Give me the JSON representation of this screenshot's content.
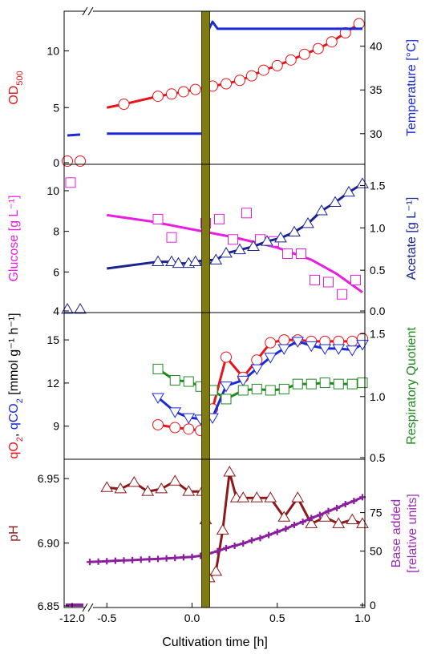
{
  "xlabel": "Cultivation time [h]",
  "x_ticks": [
    "-12.0",
    "-0.5",
    "0.0",
    "0.5",
    "1.0"
  ],
  "shift_marker": {
    "x": 0.08,
    "color": "#7f7a11"
  },
  "chart_data": [
    {
      "type": "line",
      "panel": "top",
      "left_label": {
        "main": "OD",
        "sub": "500",
        "color": "#e8141b"
      },
      "right_label": {
        "text": "Temperature [°C]",
        "color": "#1a2ad6"
      },
      "left_ticks": [
        "0",
        "5",
        "10"
      ],
      "right_ticks": [
        "30",
        "35",
        "40"
      ],
      "ylim_left": [
        0,
        13.5
      ],
      "ylim_right": [
        26.5,
        44
      ],
      "series": [
        {
          "axis": "left",
          "color": "#e8141b",
          "marker": "circle",
          "pre": [
            0.0,
            0.0
          ],
          "x": [
            -0.4,
            -0.2,
            -0.12,
            -0.05,
            0.02,
            0.12,
            0.2,
            0.28,
            0.35,
            0.42,
            0.5,
            0.58,
            0.66,
            0.74,
            0.82,
            0.9,
            0.98
          ],
          "y": [
            5.3,
            6.0,
            6.2,
            6.4,
            6.6,
            6.9,
            7.1,
            7.4,
            7.8,
            8.3,
            8.7,
            9.2,
            9.7,
            10.2,
            10.8,
            11.6,
            12.4
          ],
          "line_start": -0.5,
          "line_start_y": 5.0
        },
        {
          "axis": "right",
          "color": "#1a2ad6",
          "marker": "none",
          "x": [
            -0.5,
            0.06,
            0.07,
            0.085,
            0.1,
            0.12,
            0.15,
            1.0
          ],
          "y": [
            30.0,
            30.0,
            30.5,
            38.0,
            42.0,
            42.8,
            42.0,
            42.0
          ],
          "pre": [
            29.8,
            29.9
          ]
        }
      ]
    },
    {
      "type": "line",
      "panel": "glucose-acetate",
      "left_label": {
        "text": "Glucose [g L⁻¹]",
        "color": "#e81ee0"
      },
      "right_label": {
        "text": "Acetate [g L⁻¹]",
        "color": "#1a2490"
      },
      "left_ticks": [
        "4",
        "6",
        "8",
        "10"
      ],
      "right_ticks": [
        "0.0",
        "0.5",
        "1.0",
        "1.5"
      ],
      "ylim_left": [
        4,
        11.3
      ],
      "ylim_right": [
        0,
        1.75
      ],
      "series": [
        {
          "axis": "left",
          "color": "#e81ee0",
          "marker": "square",
          "line": "fit",
          "pre": [
            10.4
          ],
          "x": [
            -0.2,
            -0.12,
            0.08,
            0.16,
            0.24,
            0.32,
            0.4,
            0.48,
            0.56,
            0.64,
            0.72,
            0.8,
            0.88,
            0.96
          ],
          "y": [
            8.6,
            7.7,
            8.4,
            8.6,
            7.6,
            8.9,
            7.6,
            7.5,
            6.9,
            6.9,
            5.6,
            5.5,
            4.9,
            5.6
          ],
          "fit_x": [
            -0.5,
            -0.25,
            0.0,
            0.25,
            0.5,
            0.7,
            0.85,
            1.0
          ],
          "fit_y": [
            8.8,
            8.5,
            8.1,
            7.7,
            7.2,
            6.6,
            5.9,
            5.0
          ]
        },
        {
          "axis": "right",
          "color": "#1a2490",
          "marker": "triangle-up",
          "line": "data",
          "pre": [
            0.02,
            0.02
          ],
          "x": [
            -0.2,
            -0.12,
            -0.08,
            -0.02,
            0.02,
            0.08,
            0.14,
            0.2,
            0.28,
            0.36,
            0.44,
            0.52,
            0.6,
            0.68,
            0.76,
            0.84,
            0.92,
            1.0
          ],
          "y": [
            0.6,
            0.6,
            0.58,
            0.58,
            0.6,
            0.62,
            0.62,
            0.7,
            0.74,
            0.78,
            0.84,
            0.88,
            0.95,
            1.05,
            1.2,
            1.3,
            1.42,
            1.52
          ],
          "line_start": -0.5,
          "line_start_y": 0.52
        }
      ]
    },
    {
      "type": "line",
      "panel": "rates",
      "left_label": {
        "parts": [
          {
            "text": "qO",
            "color": "#e8141b"
          },
          {
            "text": "2",
            "sub": true,
            "color": "#e8141b"
          },
          {
            "text": ", ",
            "color": "#000"
          },
          {
            "text": "qCO",
            "color": "#1a2ad6"
          },
          {
            "text": "2",
            "sub": true,
            "color": "#1a2ad6"
          },
          {
            "text": " [mmol g⁻¹ h⁻¹]",
            "color": "#000"
          }
        ]
      },
      "right_label": {
        "text": "Respiratory Quotient",
        "color": "#1f8a1f"
      },
      "left_ticks": [
        "9",
        "12",
        "15"
      ],
      "right_ticks": [
        "0.5",
        "1.0",
        "1.5"
      ],
      "ylim_left": [
        6.7,
        16.9
      ],
      "ylim_right": [
        0.5,
        1.67
      ],
      "series": [
        {
          "axis": "left",
          "color": "#e8141b",
          "marker": "circle",
          "x": [
            -0.2,
            -0.1,
            -0.02,
            0.05,
            0.12,
            0.2,
            0.3,
            0.38,
            0.46,
            0.54,
            0.62,
            0.7,
            0.78,
            0.86,
            0.94,
            1.0
          ],
          "y": [
            9.1,
            8.9,
            8.8,
            8.7,
            10.2,
            13.8,
            12.4,
            13.6,
            14.8,
            15.0,
            15.0,
            14.9,
            14.9,
            14.9,
            14.9,
            15.1
          ]
        },
        {
          "axis": "left",
          "color": "#1a2ad6",
          "marker": "triangle-down",
          "x": [
            -0.2,
            -0.1,
            -0.02,
            0.05,
            0.12,
            0.2,
            0.3,
            0.38,
            0.46,
            0.54,
            0.62,
            0.7,
            0.78,
            0.86,
            0.94,
            1.0
          ],
          "y": [
            11.0,
            10.0,
            9.6,
            9.5,
            9.6,
            11.8,
            12.2,
            13.0,
            13.8,
            14.4,
            14.9,
            14.6,
            14.4,
            14.4,
            14.3,
            14.7
          ]
        },
        {
          "axis": "right",
          "color": "#1f8a1f",
          "marker": "square",
          "x": [
            -0.2,
            -0.1,
            -0.02,
            0.05,
            0.12,
            0.2,
            0.3,
            0.38,
            0.46,
            0.54,
            0.62,
            0.7,
            0.78,
            0.86,
            0.94,
            1.0
          ],
          "y": [
            1.22,
            1.13,
            1.12,
            1.08,
            1.05,
            0.98,
            1.05,
            1.06,
            1.05,
            1.06,
            1.1,
            1.1,
            1.11,
            1.1,
            1.1,
            1.11
          ]
        }
      ]
    },
    {
      "type": "line",
      "panel": "ph-base",
      "left_label": {
        "text": "pH",
        "color": "#8b1a1a"
      },
      "right_label": {
        "line1": "Base added",
        "line2": "[relative units]",
        "color": "#9b2bb5"
      },
      "left_ticks": [
        "6.85",
        "6.90",
        "6.95"
      ],
      "right_ticks": [
        "0",
        "50",
        "75"
      ],
      "ylim_left": [
        6.85,
        6.965
      ],
      "series": [
        {
          "axis": "left",
          "color": "#8b1a1a",
          "marker": "triangle-up",
          "x": [
            -0.5,
            -0.42,
            -0.34,
            -0.26,
            -0.18,
            -0.1,
            -0.02,
            0.06,
            0.08,
            0.1,
            0.14,
            0.18,
            0.22,
            0.26,
            0.3,
            0.38,
            0.46,
            0.54,
            0.62,
            0.7,
            0.78,
            0.86,
            0.94,
            1.0
          ],
          "y": [
            6.943,
            6.942,
            6.947,
            6.94,
            6.942,
            6.948,
            6.94,
            6.94,
            6.918,
            6.873,
            6.878,
            6.91,
            6.955,
            6.935,
            6.935,
            6.935,
            6.935,
            6.92,
            6.935,
            6.915,
            6.92,
            6.915,
            6.918,
            6.915
          ]
        },
        {
          "axis": "right",
          "color": "#8a1f9e",
          "marker": "plus",
          "pre_value": 0,
          "x": [
            -0.6,
            -0.55,
            -0.5,
            -0.45,
            -0.4,
            -0.35,
            -0.3,
            -0.25,
            -0.2,
            -0.15,
            -0.1,
            -0.05,
            0.0,
            0.05,
            0.1,
            0.15,
            0.2,
            0.25,
            0.3,
            0.35,
            0.4,
            0.45,
            0.5,
            0.55,
            0.6,
            0.65,
            0.7,
            0.75,
            0.8,
            0.85,
            0.9,
            0.95,
            1.0
          ],
          "y": [
            43.0,
            43.2,
            43.5,
            43.8,
            44.0,
            44.2,
            44.5,
            44.8,
            45.0,
            45.3,
            45.6,
            46.0,
            46.3,
            47.0,
            48.5,
            50.0,
            52.0,
            53.5,
            55.0,
            57.0,
            58.5,
            60.5,
            62.5,
            64.5,
            67.0,
            69.0,
            71.5,
            73.5,
            76.0,
            78.0,
            80.5,
            82.5,
            85.0
          ]
        }
      ]
    }
  ]
}
